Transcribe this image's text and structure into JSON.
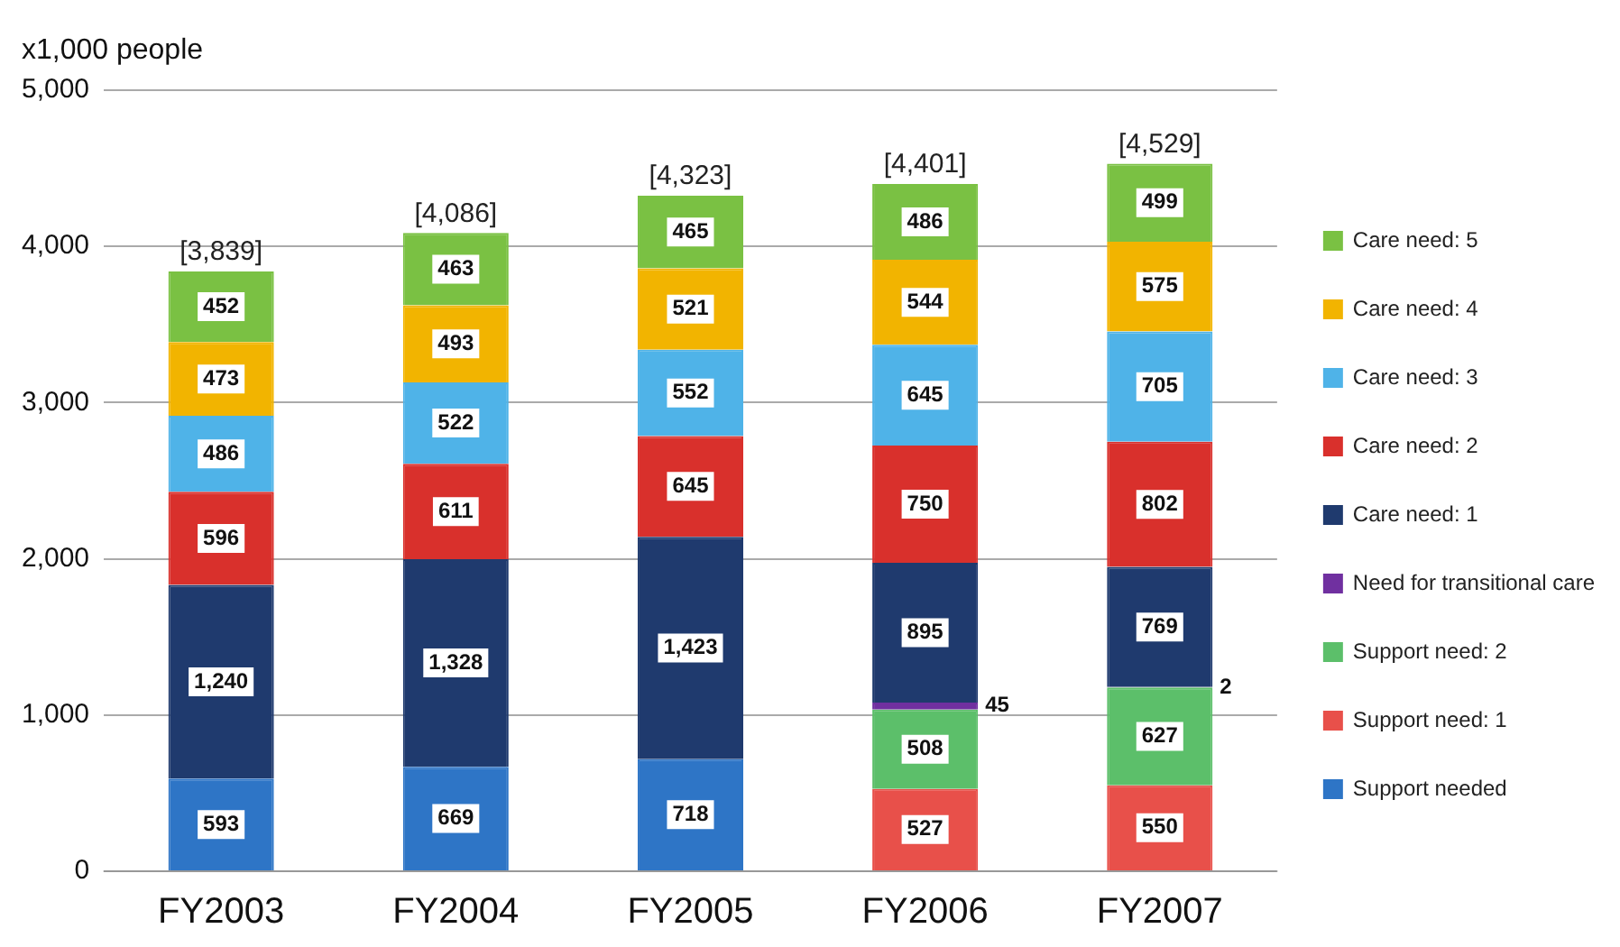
{
  "chart_data": {
    "type": "bar",
    "stacked": true,
    "ylabel": "x1,000 people",
    "categories": [
      "FY2003",
      "FY2004",
      "FY2005",
      "FY2006",
      "FY2007"
    ],
    "series": [
      {
        "name": "Support needed",
        "color": "#2e75c6",
        "values": [
          593,
          669,
          718,
          null,
          null
        ],
        "value_labels": [
          "593",
          "669",
          "718",
          null,
          null
        ]
      },
      {
        "name": "Support need: 1",
        "color": "#e8504a",
        "values": [
          null,
          null,
          null,
          527,
          550
        ],
        "value_labels": [
          null,
          null,
          null,
          "527",
          "550"
        ]
      },
      {
        "name": "Support need: 2",
        "color": "#5cbf6a",
        "values": [
          null,
          null,
          null,
          508,
          627
        ],
        "value_labels": [
          null,
          null,
          null,
          "508",
          "627"
        ]
      },
      {
        "name": "Need for transitional care",
        "color": "#7030a0",
        "values": [
          null,
          null,
          null,
          45,
          2
        ],
        "value_labels": [
          null,
          null,
          null,
          "45",
          "2"
        ]
      },
      {
        "name": "Care need: 1",
        "color": "#1f3a6e",
        "values": [
          1240,
          1328,
          1423,
          895,
          769
        ],
        "value_labels": [
          "1,240",
          "1,328",
          "1,423",
          "895",
          "769"
        ]
      },
      {
        "name": "Care need: 2",
        "color": "#d9302c",
        "values": [
          596,
          611,
          645,
          750,
          802
        ],
        "value_labels": [
          "596",
          "611",
          "645",
          "750",
          "802"
        ]
      },
      {
        "name": "Care need: 3",
        "color": "#4fb3e8",
        "values": [
          486,
          522,
          552,
          645,
          705
        ],
        "value_labels": [
          "486",
          "522",
          "552",
          "645",
          "705"
        ]
      },
      {
        "name": "Care need: 4",
        "color": "#f2b400",
        "values": [
          473,
          493,
          521,
          544,
          575
        ],
        "value_labels": [
          "473",
          "493",
          "521",
          "544",
          "575"
        ]
      },
      {
        "name": "Care need: 5",
        "color": "#7ac143",
        "values": [
          452,
          463,
          465,
          486,
          499
        ],
        "value_labels": [
          "452",
          "463",
          "465",
          "486",
          "499"
        ]
      }
    ],
    "totals": [
      "[3,839]",
      "[4,086]",
      "[4,323]",
      "[4,401]",
      "[4,529]"
    ],
    "ylim": [
      0,
      5000
    ],
    "yticks": [
      0,
      {
        "value": 1000,
        "label": "1,000"
      },
      {
        "value": 2000,
        "label": "2,000"
      },
      {
        "value": 3000,
        "label": "3,000"
      },
      {
        "value": 4000,
        "label": "4,000"
      },
      {
        "value": 5000,
        "label": "5,000"
      }
    ],
    "grid": "y",
    "legend": "right"
  }
}
